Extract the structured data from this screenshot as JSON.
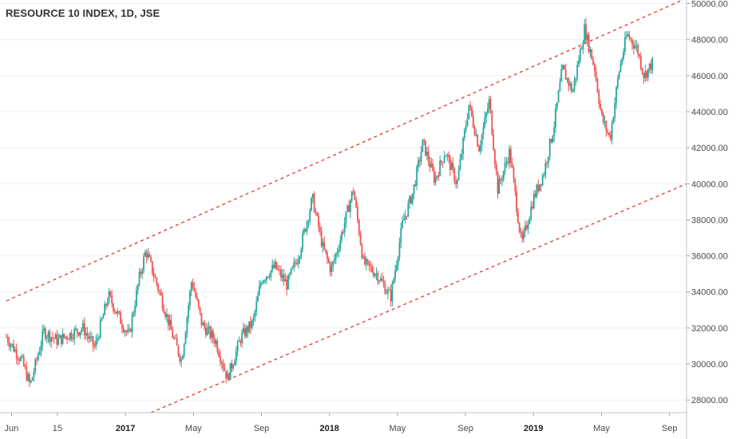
{
  "chart_data": {
    "type": "candlestick",
    "title": "RESOURCE 10 INDEX, 1D, JSE",
    "ylim": [
      27300,
      50200
    ],
    "y_ticks": [
      "28000.00",
      "30000.00",
      "32000.00",
      "34000.00",
      "36000.00",
      "38000.00",
      "40000.00",
      "42000.00",
      "44000.00",
      "46000.00",
      "48000.00",
      "50000.00"
    ],
    "x_ticks": [
      {
        "label": "Jun",
        "bold": false,
        "t": 0.3
      },
      {
        "label": "15",
        "bold": false,
        "t": 3.0
      },
      {
        "label": "2017",
        "bold": true,
        "t": 7.0
      },
      {
        "label": "May",
        "bold": false,
        "t": 11.0
      },
      {
        "label": "Sep",
        "bold": false,
        "t": 15.0
      },
      {
        "label": "2018",
        "bold": true,
        "t": 19.0
      },
      {
        "label": "May",
        "bold": false,
        "t": 23.0
      },
      {
        "label": "Sep",
        "bold": false,
        "t": 27.0
      },
      {
        "label": "2019",
        "bold": true,
        "t": 31.0
      },
      {
        "label": "May",
        "bold": false,
        "t": 35.0
      },
      {
        "label": "Sep",
        "bold": false,
        "t": 39.0
      }
    ],
    "x_range_months": [
      0,
      40.0
    ],
    "series_key_points": [
      [
        0.0,
        31500
      ],
      [
        0.9,
        30200
      ],
      [
        1.4,
        28800
      ],
      [
        2.2,
        31800
      ],
      [
        3.0,
        31300
      ],
      [
        4.5,
        32000
      ],
      [
        5.2,
        30900
      ],
      [
        6.0,
        33800
      ],
      [
        7.2,
        31500
      ],
      [
        7.8,
        34700
      ],
      [
        8.2,
        36300
      ],
      [
        9.0,
        34000
      ],
      [
        9.8,
        31500
      ],
      [
        10.3,
        30200
      ],
      [
        10.9,
        34700
      ],
      [
        11.5,
        32200
      ],
      [
        12.3,
        31300
      ],
      [
        13.0,
        29200
      ],
      [
        13.8,
        31500
      ],
      [
        14.5,
        32300
      ],
      [
        15.0,
        34700
      ],
      [
        15.8,
        35400
      ],
      [
        16.5,
        34400
      ],
      [
        17.2,
        36100
      ],
      [
        18.0,
        39200
      ],
      [
        18.6,
        36500
      ],
      [
        19.1,
        35200
      ],
      [
        19.6,
        36800
      ],
      [
        20.4,
        39700
      ],
      [
        21.0,
        35600
      ],
      [
        21.8,
        35000
      ],
      [
        22.6,
        33700
      ],
      [
        23.3,
        37800
      ],
      [
        23.9,
        39500
      ],
      [
        24.5,
        42300
      ],
      [
        25.2,
        40200
      ],
      [
        25.8,
        41800
      ],
      [
        26.5,
        40000
      ],
      [
        27.2,
        44400
      ],
      [
        27.8,
        42000
      ],
      [
        28.4,
        44600
      ],
      [
        28.9,
        39700
      ],
      [
        29.6,
        41800
      ],
      [
        30.3,
        36600
      ],
      [
        31.0,
        39200
      ],
      [
        31.6,
        40600
      ],
      [
        32.2,
        43200
      ],
      [
        32.7,
        46400
      ],
      [
        33.3,
        45100
      ],
      [
        34.0,
        48600
      ],
      [
        34.6,
        46400
      ],
      [
        35.0,
        43700
      ],
      [
        35.5,
        42500
      ],
      [
        36.0,
        46100
      ],
      [
        36.5,
        48300
      ],
      [
        37.1,
        47500
      ],
      [
        37.5,
        46000
      ],
      [
        38.0,
        46700
      ]
    ],
    "channel_lines": [
      {
        "role": "upper",
        "from": [
          0.0,
          33500
        ],
        "to": [
          40.0,
          50300
        ]
      },
      {
        "role": "lower",
        "from": [
          8.5,
          27300
        ],
        "to": [
          40.0,
          40000
        ]
      }
    ],
    "up_color": "#26a69a",
    "down_color": "#ef5350",
    "channel_color": "#e0453a",
    "grid": true,
    "legend": "none"
  }
}
